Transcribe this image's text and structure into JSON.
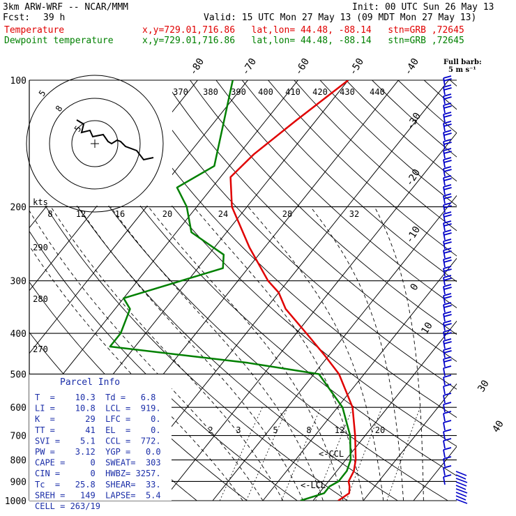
{
  "header": {
    "model": "3km ARW-WRF -- NCAR/MMM",
    "init": "Init: 00 UTC Sun 26 May 13",
    "fcst_label": "Fcst:",
    "fcst_value": "39 h",
    "valid": "Valid: 15 UTC Mon 27 May 13 (09 MDT Mon 27 May 13)",
    "temp_label": "Temperature",
    "dew_label": "Dewpoint temperature",
    "loc_info": "x,y=729.01,716.86   lat,lon= 44.48, -88.14   stn=GRB ,72645"
  },
  "wind_legend": {
    "line1": "Full barb:",
    "line2": "5 m s⁻¹"
  },
  "parcel_info": {
    "title": "Parcel Info",
    "rows": [
      "T  =    10.3  Td =   6.8",
      "LI =    10.8  LCL =  919.",
      "K  =      29  LFC =    0.",
      "TT =      41  EL  =    0.",
      "SVI =    5.1  CCL =  772.",
      "PW =    3.12  YGP =   0.0",
      "CAPE =     0  SWEAT=  303",
      "CIN =      0  HWBZ= 3257.",
      "Tc  =   25.8  SHEAR=  33.",
      "SREH =   149  LAPSE=  5.4",
      "CELL = 263/19"
    ]
  },
  "lcl_labels": [
    "<-CCL",
    "<-LCL"
  ],
  "hodograph": {
    "speed_unit": "kts",
    "ring_labels": [
      "5",
      "8",
      "5"
    ]
  },
  "colors": {
    "temperature": "#e00000",
    "dewpoint": "#008000",
    "wind_barb": "#0000c8",
    "grid": "#000000"
  },
  "chart_data": {
    "type": "line",
    "pressure_levels": [
      100,
      200,
      300,
      400,
      500,
      600,
      700,
      800,
      900,
      1000
    ],
    "temperature_ticks": [
      "-80",
      "-70",
      "-60",
      "-50",
      "-40",
      "-30",
      "-20",
      "-10",
      "0",
      "10",
      "30",
      "40"
    ],
    "theta_labels": [
      "370",
      "380",
      "390",
      "400",
      "410",
      "420",
      "430",
      "440"
    ],
    "theta_side_labels": [
      "290",
      "280",
      "270"
    ],
    "mixing_ratio_labels_top": [
      "8",
      "12",
      "16",
      "20",
      "24",
      "28",
      "32"
    ],
    "mixing_ratio_labels_low": [
      "2",
      "3",
      "5",
      "8",
      "12",
      "20"
    ],
    "series": [
      {
        "name": "Temperature",
        "points": [
          [
            1000,
            15
          ],
          [
            960,
            16
          ],
          [
            925,
            15
          ],
          [
            900,
            14
          ],
          [
            850,
            13.4
          ],
          [
            800,
            12
          ],
          [
            700,
            8
          ],
          [
            600,
            3
          ],
          [
            500,
            -5
          ],
          [
            450,
            -11
          ],
          [
            400,
            -18
          ],
          [
            350,
            -26
          ],
          [
            320,
            -30
          ],
          [
            300,
            -34
          ],
          [
            250,
            -43
          ],
          [
            200,
            -53
          ],
          [
            170,
            -58
          ],
          [
            150,
            -57
          ],
          [
            125,
            -54
          ],
          [
            100,
            -50
          ]
        ]
      },
      {
        "name": "Dewpoint temperature",
        "points": [
          [
            1000,
            7.5
          ],
          [
            960,
            11
          ],
          [
            925,
            11
          ],
          [
            900,
            12
          ],
          [
            850,
            12
          ],
          [
            800,
            11
          ],
          [
            700,
            7
          ],
          [
            600,
            1
          ],
          [
            500,
            -9
          ],
          [
            470,
            -25
          ],
          [
            430,
            -55
          ],
          [
            400,
            -55
          ],
          [
            350,
            -57
          ],
          [
            330,
            -60
          ],
          [
            280,
            -45
          ],
          [
            260,
            -47
          ],
          [
            230,
            -57
          ],
          [
            200,
            -62
          ],
          [
            180,
            -67
          ],
          [
            160,
            -63
          ],
          [
            100,
            -73
          ]
        ]
      }
    ]
  }
}
